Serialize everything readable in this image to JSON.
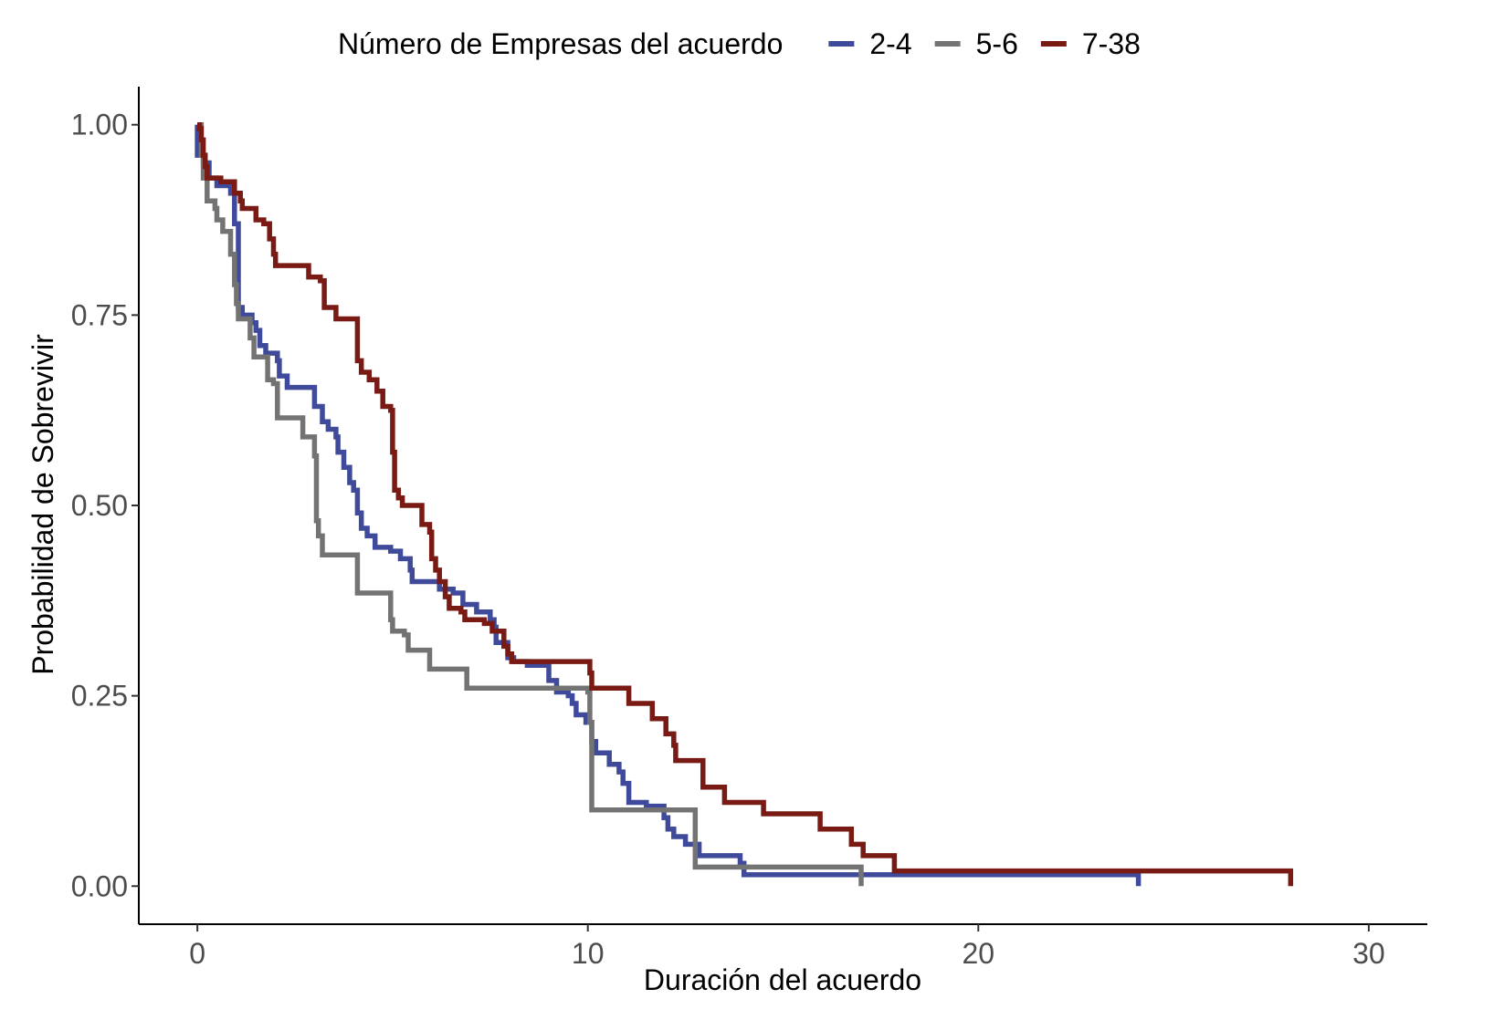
{
  "chart_data": {
    "type": "line",
    "subtype": "step",
    "xlabel": "Duración del acuerdo",
    "ylabel": "Probabilidad de Sobrevivir",
    "xlim": [
      -1.5,
      31.5
    ],
    "ylim": [
      -0.05,
      1.05
    ],
    "x_ticks": [
      0,
      10,
      20,
      30
    ],
    "x_tick_labels": [
      "0",
      "10",
      "20",
      "30"
    ],
    "y_ticks": [
      0,
      0.25,
      0.5,
      0.75,
      1
    ],
    "y_tick_labels": [
      "0.00",
      "0.25",
      "0.50",
      "0.75",
      "1.00"
    ],
    "grid": false,
    "legend": {
      "title": "Número de Empresas del acuerdo",
      "position": "top"
    },
    "series": [
      {
        "name": "2-4",
        "color": "#3F4A9A",
        "points": [
          [
            0,
            1.0
          ],
          [
            0,
            0.96
          ],
          [
            0.15,
            0.95
          ],
          [
            0.3,
            0.93
          ],
          [
            0.5,
            0.92
          ],
          [
            0.85,
            0.91
          ],
          [
            0.95,
            0.87
          ],
          [
            1.05,
            0.85
          ],
          [
            1.05,
            0.76
          ],
          [
            1.15,
            0.75
          ],
          [
            1.4,
            0.74
          ],
          [
            1.5,
            0.73
          ],
          [
            1.6,
            0.71
          ],
          [
            1.75,
            0.7
          ],
          [
            2.05,
            0.69
          ],
          [
            2.1,
            0.67
          ],
          [
            2.3,
            0.655
          ],
          [
            2.9,
            0.655
          ],
          [
            3.0,
            0.63
          ],
          [
            3.2,
            0.61
          ],
          [
            3.35,
            0.6
          ],
          [
            3.55,
            0.59
          ],
          [
            3.6,
            0.57
          ],
          [
            3.75,
            0.55
          ],
          [
            3.9,
            0.53
          ],
          [
            4.0,
            0.52
          ],
          [
            4.1,
            0.49
          ],
          [
            4.2,
            0.47
          ],
          [
            4.35,
            0.46
          ],
          [
            4.55,
            0.445
          ],
          [
            4.95,
            0.44
          ],
          [
            5.2,
            0.43
          ],
          [
            5.45,
            0.415
          ],
          [
            5.5,
            0.4
          ],
          [
            6.2,
            0.39
          ],
          [
            6.55,
            0.385
          ],
          [
            6.8,
            0.37
          ],
          [
            7.15,
            0.36
          ],
          [
            7.5,
            0.35
          ],
          [
            7.6,
            0.34
          ],
          [
            7.65,
            0.32
          ],
          [
            7.95,
            0.3
          ],
          [
            8.1,
            0.295
          ],
          [
            8.45,
            0.29
          ],
          [
            9.0,
            0.27
          ],
          [
            9.2,
            0.255
          ],
          [
            9.5,
            0.25
          ],
          [
            9.6,
            0.24
          ],
          [
            9.7,
            0.225
          ],
          [
            9.95,
            0.215
          ],
          [
            10.1,
            0.19
          ],
          [
            10.2,
            0.175
          ],
          [
            10.55,
            0.16
          ],
          [
            10.8,
            0.15
          ],
          [
            10.9,
            0.135
          ],
          [
            11.05,
            0.12
          ],
          [
            11.05,
            0.11
          ],
          [
            11.5,
            0.105
          ],
          [
            11.95,
            0.09
          ],
          [
            12.05,
            0.075
          ],
          [
            12.2,
            0.065
          ],
          [
            12.5,
            0.055
          ],
          [
            12.85,
            0.04
          ],
          [
            13.3,
            0.04
          ],
          [
            13.9,
            0.03
          ],
          [
            14.0,
            0.015
          ],
          [
            24.1,
            0.015
          ],
          [
            24.1,
            0.0
          ]
        ]
      },
      {
        "name": "5-6",
        "color": "#737373",
        "points": [
          [
            0,
            1.0
          ],
          [
            0.1,
            0.96
          ],
          [
            0.15,
            0.93
          ],
          [
            0.25,
            0.9
          ],
          [
            0.45,
            0.89
          ],
          [
            0.5,
            0.875
          ],
          [
            0.65,
            0.86
          ],
          [
            0.85,
            0.83
          ],
          [
            0.95,
            0.79
          ],
          [
            1.0,
            0.765
          ],
          [
            1.05,
            0.745
          ],
          [
            1.25,
            0.745
          ],
          [
            1.35,
            0.72
          ],
          [
            1.45,
            0.695
          ],
          [
            1.7,
            0.695
          ],
          [
            1.8,
            0.665
          ],
          [
            1.95,
            0.66
          ],
          [
            2.05,
            0.66
          ],
          [
            2.05,
            0.615
          ],
          [
            2.7,
            0.615
          ],
          [
            2.7,
            0.59
          ],
          [
            2.95,
            0.59
          ],
          [
            3.0,
            0.565
          ],
          [
            3.05,
            0.48
          ],
          [
            3.1,
            0.46
          ],
          [
            3.15,
            0.46
          ],
          [
            3.2,
            0.435
          ],
          [
            4.05,
            0.435
          ],
          [
            4.1,
            0.385
          ],
          [
            4.8,
            0.385
          ],
          [
            4.95,
            0.35
          ],
          [
            5.0,
            0.335
          ],
          [
            5.3,
            0.33
          ],
          [
            5.4,
            0.31
          ],
          [
            5.95,
            0.31
          ],
          [
            5.95,
            0.285
          ],
          [
            6.9,
            0.285
          ],
          [
            6.9,
            0.26
          ],
          [
            9.75,
            0.26
          ],
          [
            10.0,
            0.255
          ],
          [
            10.05,
            0.215
          ],
          [
            10.1,
            0.165
          ],
          [
            10.1,
            0.1
          ],
          [
            12.55,
            0.1
          ],
          [
            12.75,
            0.1
          ],
          [
            12.75,
            0.025
          ],
          [
            17.0,
            0.025
          ],
          [
            17.0,
            0.0
          ]
        ]
      },
      {
        "name": "7-38",
        "color": "#7A1A14",
        "points": [
          [
            0,
            1.0
          ],
          [
            0.05,
            0.995
          ],
          [
            0.1,
            0.98
          ],
          [
            0.15,
            0.96
          ],
          [
            0.2,
            0.945
          ],
          [
            0.25,
            0.93
          ],
          [
            0.4,
            0.93
          ],
          [
            0.6,
            0.925
          ],
          [
            0.85,
            0.925
          ],
          [
            0.95,
            0.91
          ],
          [
            1.1,
            0.9
          ],
          [
            1.15,
            0.89
          ],
          [
            1.5,
            0.875
          ],
          [
            1.7,
            0.87
          ],
          [
            1.85,
            0.85
          ],
          [
            1.95,
            0.83
          ],
          [
            2.0,
            0.815
          ],
          [
            2.75,
            0.815
          ],
          [
            2.85,
            0.8
          ],
          [
            3.15,
            0.795
          ],
          [
            3.25,
            0.76
          ],
          [
            3.5,
            0.76
          ],
          [
            3.55,
            0.745
          ],
          [
            4.05,
            0.745
          ],
          [
            4.1,
            0.69
          ],
          [
            4.2,
            0.675
          ],
          [
            4.4,
            0.665
          ],
          [
            4.6,
            0.65
          ],
          [
            4.75,
            0.63
          ],
          [
            4.95,
            0.625
          ],
          [
            5.0,
            0.57
          ],
          [
            5.05,
            0.52
          ],
          [
            5.15,
            0.51
          ],
          [
            5.25,
            0.5
          ],
          [
            5.65,
            0.5
          ],
          [
            5.75,
            0.475
          ],
          [
            5.95,
            0.465
          ],
          [
            6.0,
            0.43
          ],
          [
            6.1,
            0.415
          ],
          [
            6.2,
            0.4
          ],
          [
            6.35,
            0.38
          ],
          [
            6.45,
            0.365
          ],
          [
            6.75,
            0.36
          ],
          [
            6.85,
            0.35
          ],
          [
            7.0,
            0.35
          ],
          [
            7.35,
            0.345
          ],
          [
            7.55,
            0.335
          ],
          [
            7.85,
            0.315
          ],
          [
            7.95,
            0.305
          ],
          [
            8.05,
            0.295
          ],
          [
            10.05,
            0.295
          ],
          [
            10.05,
            0.28
          ],
          [
            10.1,
            0.26
          ],
          [
            10.95,
            0.26
          ],
          [
            11.05,
            0.24
          ],
          [
            11.55,
            0.24
          ],
          [
            11.65,
            0.22
          ],
          [
            12.0,
            0.2
          ],
          [
            12.2,
            0.185
          ],
          [
            12.25,
            0.165
          ],
          [
            12.95,
            0.165
          ],
          [
            12.95,
            0.13
          ],
          [
            13.5,
            0.13
          ],
          [
            13.5,
            0.11
          ],
          [
            14.5,
            0.11
          ],
          [
            14.5,
            0.095
          ],
          [
            15.95,
            0.095
          ],
          [
            15.95,
            0.075
          ],
          [
            16.75,
            0.075
          ],
          [
            16.75,
            0.055
          ],
          [
            17.05,
            0.055
          ],
          [
            17.05,
            0.04
          ],
          [
            17.85,
            0.04
          ],
          [
            17.85,
            0.02
          ],
          [
            28.0,
            0.02
          ],
          [
            28.0,
            0.0
          ]
        ]
      }
    ]
  }
}
